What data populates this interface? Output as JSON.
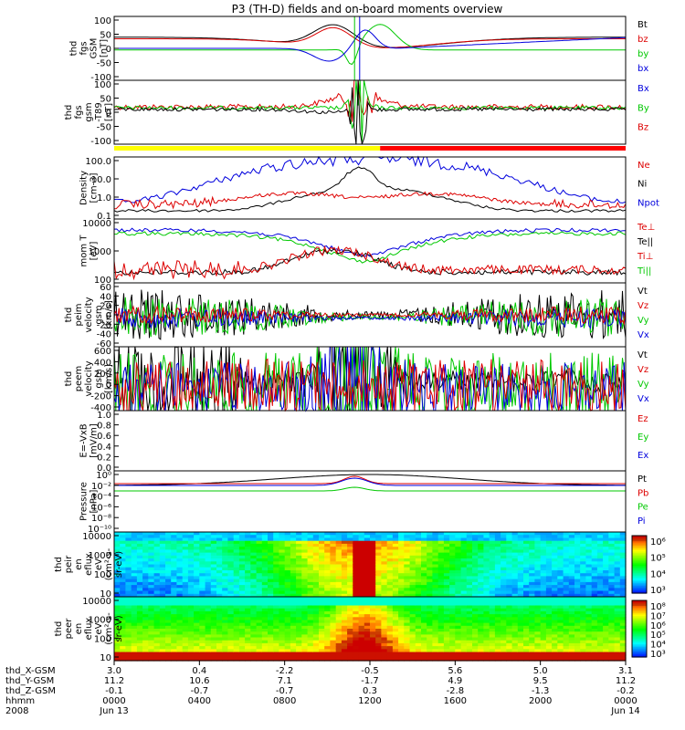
{
  "chart_data": {
    "type": "line",
    "title": "P3 (TH-D) fields and on-board moments overview",
    "panels": [
      {
        "id": "fgs_gsm",
        "ylabel": [
          "thd",
          "fgs",
          "GSM",
          "[nT]"
        ],
        "yticks": [
          "100",
          "50",
          "0",
          "-50",
          "-100"
        ],
        "ylim": [
          -100,
          100
        ],
        "legend": [
          {
            "label": "Bt",
            "color": "#000000"
          },
          {
            "label": "bz",
            "color": "#dd0000"
          },
          {
            "label": "by",
            "color": "#00c800"
          },
          {
            "label": "bx",
            "color": "#0000dd"
          }
        ]
      },
      {
        "id": "fgs_gsm_t89",
        "ylabel": [
          "thd",
          "fgs",
          "gsm",
          "-T89",
          "[nT]"
        ],
        "yticks": [
          "100",
          "50",
          "0",
          "-50",
          "-100"
        ],
        "ylim": [
          -120,
          100
        ],
        "legend": [
          {
            "label": "Bx",
            "color": "#0000dd"
          },
          {
            "label": "By",
            "color": "#00c800"
          },
          {
            "label": "Bz",
            "color": "#dd0000"
          }
        ]
      },
      {
        "id": "density",
        "ylabel": [
          "Density",
          "[cm-3]"
        ],
        "yticks": [
          "100.0",
          "10.0",
          "1.0",
          "0.1"
        ],
        "scale": "log",
        "ylim": [
          0.1,
          100
        ],
        "legend": [
          {
            "label": "Ne",
            "color": "#dd0000"
          },
          {
            "label": "Ni",
            "color": "#000000"
          },
          {
            "label": "Npot",
            "color": "#0000dd"
          }
        ]
      },
      {
        "id": "temperature",
        "ylabel": [
          "mom T",
          "[eV]"
        ],
        "yticks": [
          "10000",
          "1000",
          "100"
        ],
        "scale": "log",
        "ylim": [
          50,
          10000
        ],
        "legend": [
          {
            "label": "Te⊥",
            "color": "#dd0000"
          },
          {
            "label": "Te||",
            "color": "#000000"
          },
          {
            "label": "Ti⊥",
            "color": "#dd0000"
          },
          {
            "label": "Ti||",
            "color": "#00c800"
          }
        ]
      },
      {
        "id": "peim_velocity",
        "ylabel": [
          "thd",
          "peim",
          "velocity",
          "gsm",
          "[km/s]"
        ],
        "yticks": [
          "60",
          "40",
          "20",
          "0",
          "-20",
          "-40",
          "-60"
        ],
        "ylim": [
          -60,
          60
        ],
        "legend": [
          {
            "label": "Vt",
            "color": "#000000"
          },
          {
            "label": "Vz",
            "color": "#dd0000"
          },
          {
            "label": "Vy",
            "color": "#00c800"
          },
          {
            "label": "Vx",
            "color": "#0000dd"
          }
        ]
      },
      {
        "id": "peem_velocity",
        "ylabel": [
          "thd",
          "peem",
          "velocity",
          "gsm",
          "[km/s]"
        ],
        "yticks": [
          "600",
          "400",
          "200",
          "0",
          "-200",
          "-400"
        ],
        "ylim": [
          -400,
          600
        ],
        "legend": [
          {
            "label": "Vt",
            "color": "#000000"
          },
          {
            "label": "Vz",
            "color": "#dd0000"
          },
          {
            "label": "Vy",
            "color": "#00c800"
          },
          {
            "label": "Vx",
            "color": "#0000dd"
          }
        ]
      },
      {
        "id": "efield",
        "ylabel": [
          "E=-VxB",
          "[mV/m]"
        ],
        "yticks": [
          "1.0",
          "0.8",
          "0.6",
          "0.4",
          "0.2",
          "0.0"
        ],
        "ylim": [
          0,
          1
        ],
        "legend": [
          {
            "label": "Ez",
            "color": "#dd0000"
          },
          {
            "label": "Ey",
            "color": "#00c800"
          },
          {
            "label": "Ex",
            "color": "#0000dd"
          }
        ]
      },
      {
        "id": "pressure",
        "ylabel": [
          "Pressure",
          "[nPa]"
        ],
        "yticks": [
          "10⁰",
          "10⁻²",
          "10⁻⁴",
          "10⁻⁶",
          "10⁻⁸",
          "10⁻¹⁰"
        ],
        "scale": "log",
        "legend": [
          {
            "label": "Pt",
            "color": "#000000"
          },
          {
            "label": "Pb",
            "color": "#dd0000"
          },
          {
            "label": "Pe",
            "color": "#00c800"
          },
          {
            "label": "Pi",
            "color": "#0000dd"
          }
        ]
      },
      {
        "id": "peir_eflux",
        "type": "heatmap",
        "ylabel": [
          "thd",
          "peir",
          "en",
          "eflux",
          "eV",
          "(cm²-s-",
          "sr-eV)"
        ],
        "yticks": [
          "10000",
          "1000",
          "100",
          "10"
        ],
        "colorbar_ticks": [
          "10⁶",
          "10⁵",
          "10⁴",
          "10³"
        ]
      },
      {
        "id": "peer_eflux",
        "type": "heatmap",
        "ylabel": [
          "thd",
          "peer",
          "en",
          "eflux",
          "eV",
          "(cm²-s-",
          "sr-eV)"
        ],
        "yticks": [
          "10000",
          "1000",
          "100",
          "10"
        ],
        "colorbar_ticks": [
          "10⁸",
          "10⁷",
          "10⁶",
          "10⁵",
          "10⁴",
          "10³"
        ]
      }
    ],
    "x_axis": {
      "row_labels": [
        "thd_X-GSM",
        "thd_Y-GSM",
        "thd_Z-GSM",
        "hhmm",
        "2008"
      ],
      "ticks": [
        {
          "x": "3.0",
          "y": "11.2",
          "z": "-0.1",
          "hhmm": "0000",
          "date": "Jun 13"
        },
        {
          "x": "0.4",
          "y": "10.6",
          "z": "-0.7",
          "hhmm": "0400",
          "date": ""
        },
        {
          "x": "-2.2",
          "y": "7.1",
          "z": "-0.7",
          "hhmm": "0800",
          "date": ""
        },
        {
          "x": "-0.5",
          "y": "-1.7",
          "z": "0.3",
          "hhmm": "1200",
          "date": ""
        },
        {
          "x": "5.6",
          "y": "4.9",
          "z": "-2.8",
          "hhmm": "1600",
          "date": ""
        },
        {
          "x": "5.0",
          "y": "9.5",
          "z": "-1.3",
          "hhmm": "2000",
          "date": ""
        },
        {
          "x": "3.1",
          "y": "11.2",
          "z": "-0.2",
          "hhmm": "0000",
          "date": "Jun 14"
        }
      ]
    }
  }
}
